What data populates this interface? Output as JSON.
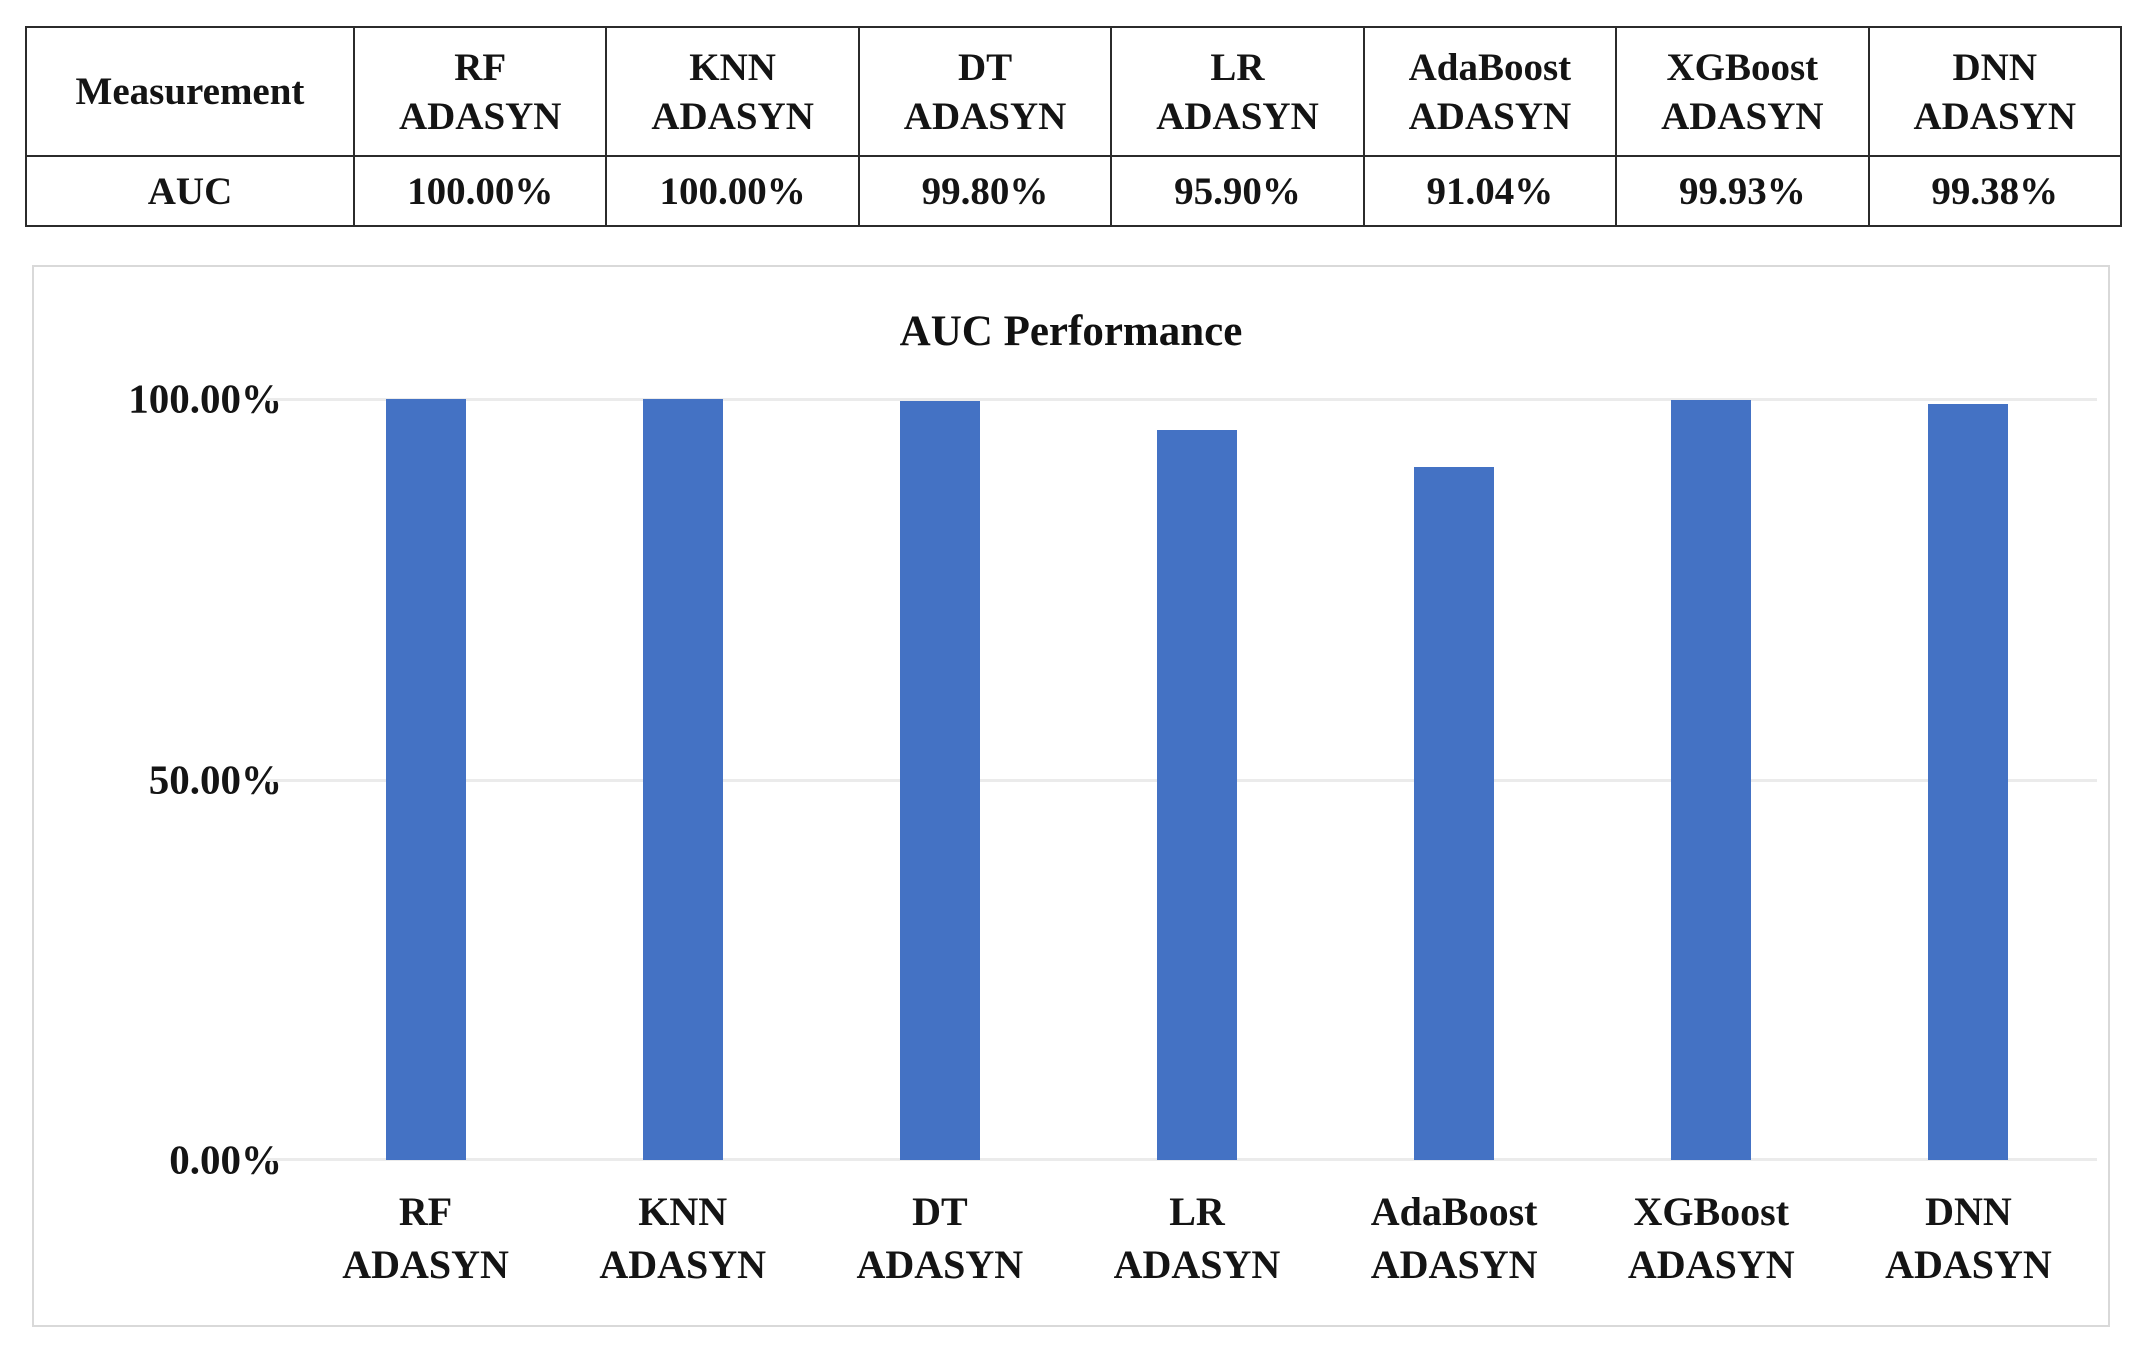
{
  "table": {
    "measurement_header": "Measurement",
    "row_label": "AUC",
    "columns": [
      {
        "line1": "RF",
        "line2": "ADASYN"
      },
      {
        "line1": "KNN",
        "line2": "ADASYN"
      },
      {
        "line1": "DT",
        "line2": "ADASYN"
      },
      {
        "line1": "LR",
        "line2": "ADASYN"
      },
      {
        "line1": "AdaBoost",
        "line2": "ADASYN"
      },
      {
        "line1": "XGBoost",
        "line2": "ADASYN"
      },
      {
        "line1": "DNN",
        "line2": "ADASYN"
      }
    ],
    "values": [
      "100.00%",
      "100.00%",
      "99.80%",
      "95.90%",
      "91.04%",
      "99.93%",
      "99.38%"
    ]
  },
  "chart": {
    "title": "AUC Performance"
  },
  "chart_data": {
    "type": "bar",
    "title": "AUC Performance",
    "categories": [
      "RF ADASYN",
      "KNN ADASYN",
      "DT ADASYN",
      "LR ADASYN",
      "AdaBoost ADASYN",
      "XGBoost ADASYN",
      "DNN ADASYN"
    ],
    "values": [
      100.0,
      100.0,
      99.8,
      95.9,
      91.04,
      99.93,
      99.38
    ],
    "xlabel": "",
    "ylabel": "",
    "ylim": [
      0,
      100
    ],
    "yticks": [
      "100.00%",
      "50.00%",
      "0.00%"
    ],
    "grid": "horizontal",
    "legend": "none",
    "bar_color": "#4472C4",
    "gridline_color": "#ebebeb",
    "border_color": "#d9d9d9"
  }
}
